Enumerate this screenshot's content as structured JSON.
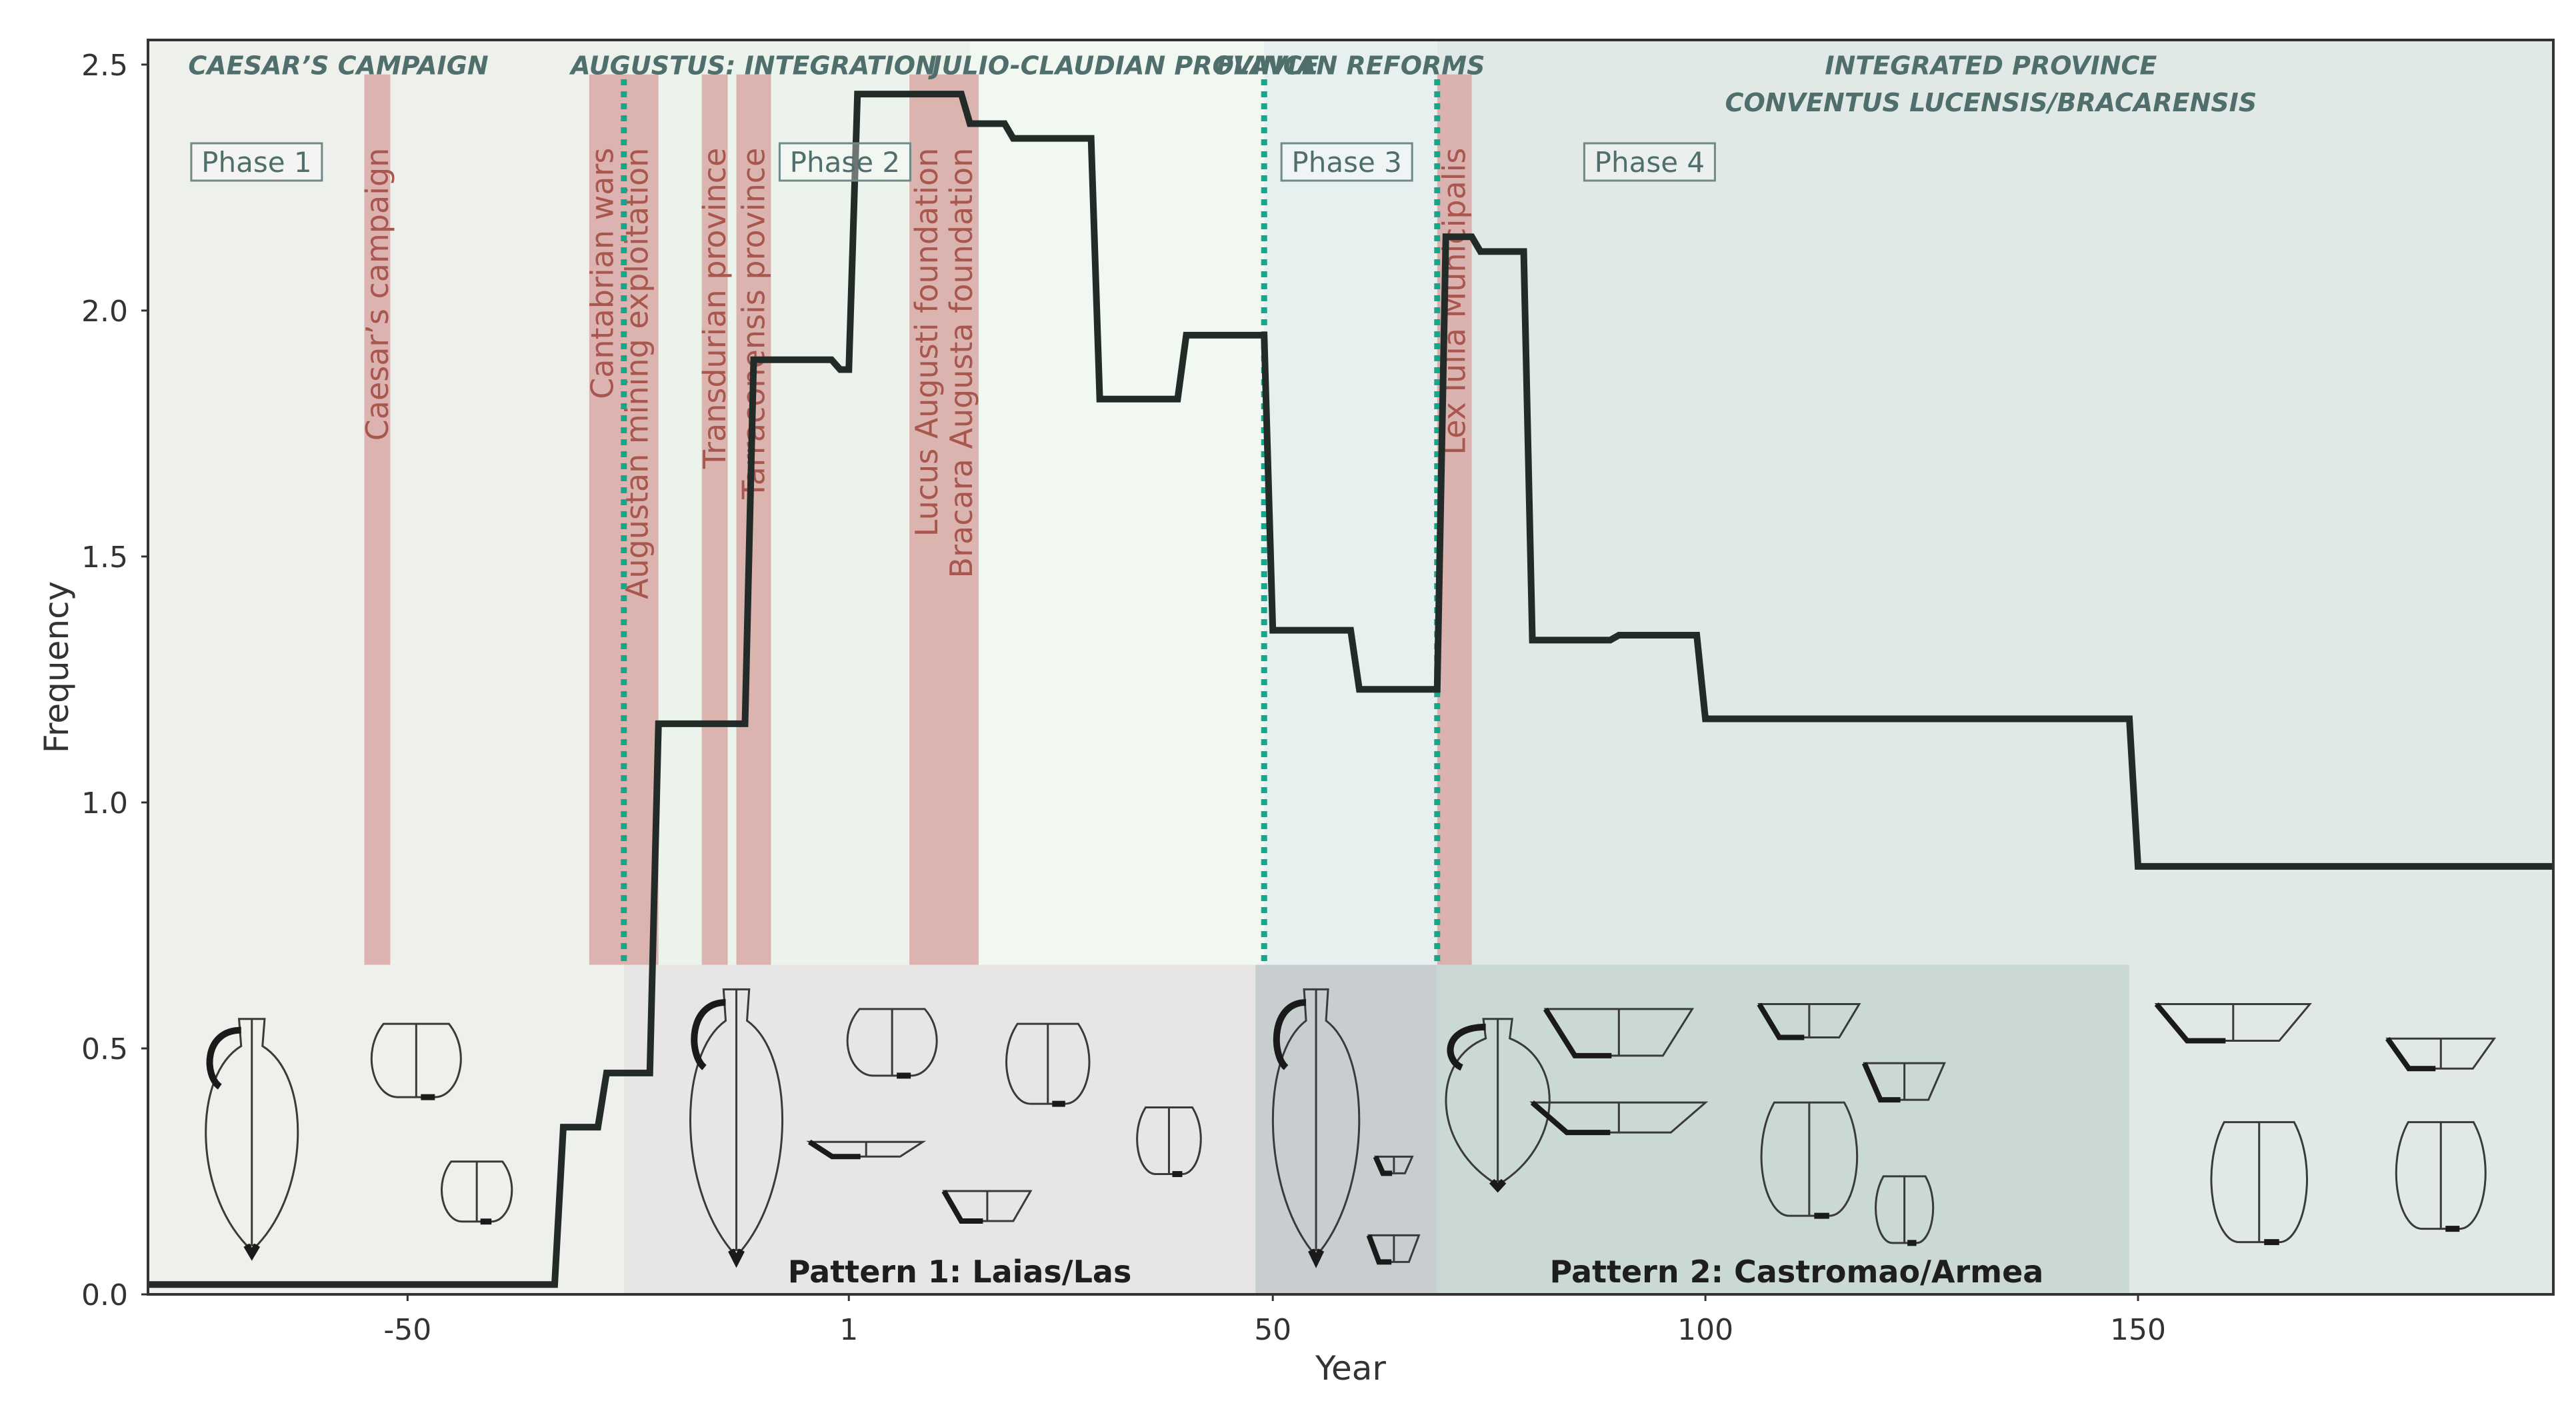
{
  "chart_data": {
    "type": "line",
    "step": true,
    "xlabel": "Year",
    "ylabel": "Frequency",
    "xlim": [
      -80,
      198
    ],
    "ylim": [
      0,
      2.55
    ],
    "x_ticks": [
      {
        "value": -50,
        "label": "-50"
      },
      {
        "value": 1,
        "label": "1"
      },
      {
        "value": 50,
        "label": "50"
      },
      {
        "value": 100,
        "label": "100"
      },
      {
        "value": 150,
        "label": "150"
      }
    ],
    "y_ticks": [
      {
        "value": 0.0,
        "label": "0.0"
      },
      {
        "value": 0.5,
        "label": "0.5"
      },
      {
        "value": 1.0,
        "label": "1.0"
      },
      {
        "value": 1.5,
        "label": "1.5"
      },
      {
        "value": 2.0,
        "label": "2.0"
      },
      {
        "value": 2.5,
        "label": "2.5"
      }
    ],
    "grid": false,
    "series": [
      {
        "color": "#222b28",
        "points": [
          [
            -80,
            0.02
          ],
          [
            -33,
            0.02
          ],
          [
            -32,
            0.34
          ],
          [
            -28,
            0.34
          ],
          [
            -27,
            0.45
          ],
          [
            -22,
            0.45
          ],
          [
            -21,
            1.16
          ],
          [
            -11,
            1.16
          ],
          [
            -10,
            1.9
          ],
          [
            -1,
            1.9
          ],
          [
            0,
            1.88
          ],
          [
            1,
            1.88
          ],
          [
            2,
            2.44
          ],
          [
            14,
            2.44
          ],
          [
            15,
            2.38
          ],
          [
            19,
            2.38
          ],
          [
            20,
            2.35
          ],
          [
            29,
            2.35
          ],
          [
            30,
            1.82
          ],
          [
            39,
            1.82
          ],
          [
            40,
            1.95
          ],
          [
            49,
            1.95
          ],
          [
            50,
            1.35
          ],
          [
            59,
            1.35
          ],
          [
            60,
            1.23
          ],
          [
            69,
            1.23
          ],
          [
            70,
            2.15
          ],
          [
            73,
            2.15
          ],
          [
            74,
            2.12
          ],
          [
            79,
            2.12
          ],
          [
            80,
            1.33
          ],
          [
            89,
            1.33
          ],
          [
            90,
            1.34
          ],
          [
            99,
            1.34
          ],
          [
            100,
            1.17
          ],
          [
            149,
            1.17
          ],
          [
            150,
            0.87
          ],
          [
            198,
            0.87
          ]
        ]
      }
    ],
    "period_bands": [
      {
        "label": "CAESAR’S CAMPAIGN",
        "start": -80,
        "end": -25,
        "color": "#eef0eb"
      },
      {
        "label": "AUGUSTUS: INTEGRATION",
        "start": -25,
        "end": 15,
        "color": "#ebf3ec"
      },
      {
        "label": "JULIO-CLAUDIAN PROVINCE",
        "start": 15,
        "end": 49,
        "color": "#f0f8f1"
      },
      {
        "label": "FLAVIAN REFORMS",
        "start": 49,
        "end": 69,
        "color": "#e6f0ef"
      },
      {
        "label": "INTEGRATED PROVINCE",
        "start": 69,
        "end": 198,
        "color": "#e1e9e7"
      }
    ],
    "extra_period_label": "CONVENTUS LUCENSIS/BRACARENSIS",
    "phase_boundaries": [
      -25,
      49,
      69
    ],
    "phases": [
      {
        "label": "Phase 1",
        "x": -75
      },
      {
        "label": "Phase 2",
        "x": -7
      },
      {
        "label": "Phase 3",
        "x": 51
      },
      {
        "label": "Phase 4",
        "x": 86
      }
    ],
    "events": [
      {
        "label": "Caesar’s campaign",
        "start": -55,
        "end": -52
      },
      {
        "label": "Cantabrian wars",
        "start": -29,
        "end": -26
      },
      {
        "label": "Augustan mining exploitation",
        "start": -26,
        "end": -21
      },
      {
        "label": "Transdurian province",
        "start": -16,
        "end": -13
      },
      {
        "label": "Tarraconensis province",
        "start": -12,
        "end": -8
      },
      {
        "label": "Lucus Augusti foundation",
        "start": 8,
        "end": 12
      },
      {
        "label": "Bracara Augusta foundation",
        "start": 12,
        "end": 16
      },
      {
        "label": "Lex Iulia Municipalis",
        "start": 69,
        "end": 73
      }
    ],
    "patterns": [
      {
        "label": "Pattern 1: Laias/Las",
        "start": -25,
        "end": 48
      },
      {
        "label": "Pattern 2: Castromao/Armea",
        "start": 69,
        "end": 149
      }
    ]
  }
}
